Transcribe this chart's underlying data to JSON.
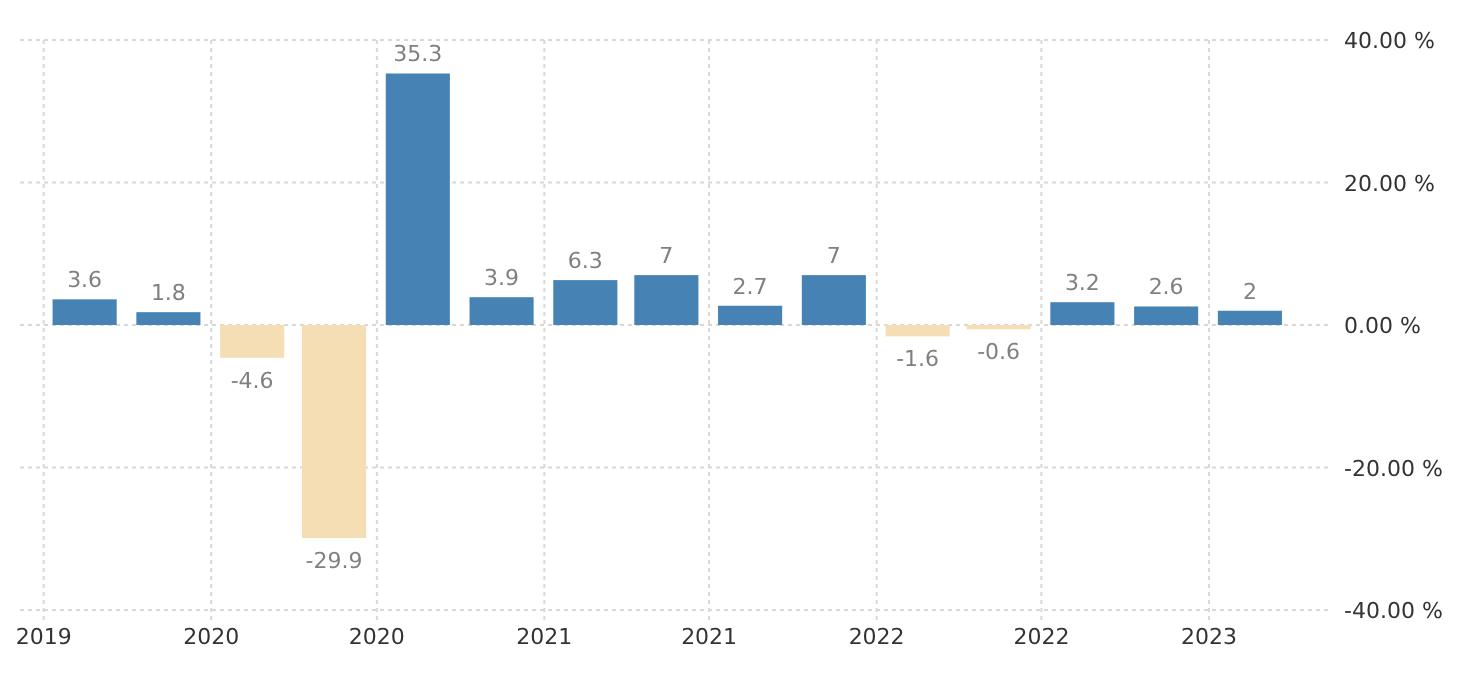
{
  "chart_data": {
    "type": "bar",
    "x": [
      "2019-08-15",
      "2019-11-15",
      "2020-02-15",
      "2020-05-15",
      "2020-08-15",
      "2020-11-15",
      "2021-02-15",
      "2021-05-15",
      "2021-08-15",
      "2021-11-15",
      "2022-02-15",
      "2022-05-15",
      "2022-08-15",
      "2022-11-15",
      "2023-02-15"
    ],
    "values": [
      3.6,
      1.8,
      -4.6,
      -29.9,
      35.3,
      3.9,
      6.3,
      7,
      2.7,
      7,
      -1.6,
      -0.6,
      3.2,
      2.6,
      2
    ],
    "colors": [
      "#4682b4",
      "#4682b4",
      "#f5deb3",
      "#f5deb3",
      "#4682b4",
      "#4682b4",
      "#4682b4",
      "#4682b4",
      "#4682b4",
      "#4682b4",
      "#f5deb3",
      "#f5deb3",
      "#4682b4",
      "#4682b4",
      "#4682b4"
    ],
    "data_labels": true,
    "xlim": [
      "2019-06-05",
      "2023-05-14"
    ],
    "xticks": [
      {
        "value": "2019-07-01",
        "label": "2019"
      },
      {
        "value": "2020-01-01",
        "label": "2020"
      },
      {
        "value": "2020-07-01",
        "label": "2020"
      },
      {
        "value": "2021-01-01",
        "label": "2021"
      },
      {
        "value": "2021-07-01",
        "label": "2021"
      },
      {
        "value": "2022-01-01",
        "label": "2022"
      },
      {
        "value": "2022-07-01",
        "label": "2022"
      },
      {
        "value": "2023-01-01",
        "label": "2023"
      }
    ],
    "ylim": [
      -40,
      40
    ],
    "yticks": [
      {
        "value": 40,
        "label": "40.00 %"
      },
      {
        "value": 20,
        "label": "20.00 %"
      },
      {
        "value": 0,
        "label": "0.00 %"
      },
      {
        "value": -20,
        "label": "-20.00 %"
      },
      {
        "value": -40,
        "label": "-40.00 %"
      }
    ],
    "grid": true
  }
}
